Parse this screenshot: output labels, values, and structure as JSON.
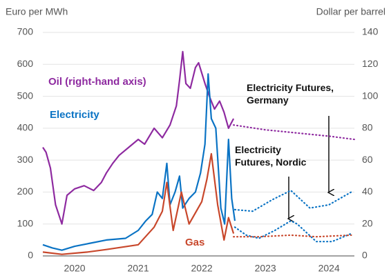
{
  "chart_data": {
    "type": "line",
    "ylabel": "Euro per MWh",
    "y2label": "Dollar per barrel",
    "xlim": [
      2020,
      2024.9
    ],
    "xticks": [
      {
        "value": 2020.5,
        "label": "2020"
      },
      {
        "value": 2021.5,
        "label": "2021"
      },
      {
        "value": 2022.5,
        "label": "2022"
      },
      {
        "value": 2023.5,
        "label": "2023"
      },
      {
        "value": 2024.5,
        "label": "2024"
      }
    ],
    "ylim": [
      0,
      700
    ],
    "yticks": [
      0,
      100,
      200,
      300,
      400,
      500,
      600,
      700
    ],
    "y2lim": [
      0,
      140
    ],
    "y2ticks": [
      0,
      20,
      40,
      60,
      80,
      100,
      120,
      140
    ],
    "grid": true,
    "series": [
      {
        "name": "Oil (right-hand axis)",
        "color": "#8e2aa0",
        "axis": "y2",
        "style": "solid",
        "x": [
          2020.0,
          2020.05,
          2020.12,
          2020.2,
          2020.3,
          2020.38,
          2020.5,
          2020.65,
          2020.8,
          2020.92,
          2021.0,
          2021.1,
          2021.2,
          2021.35,
          2021.5,
          2021.6,
          2021.75,
          2021.88,
          2022.0,
          2022.1,
          2022.15,
          2022.2,
          2022.25,
          2022.32,
          2022.4,
          2022.45,
          2022.55,
          2022.62,
          2022.7,
          2022.78,
          2022.85,
          2022.92,
          2023.0
        ],
        "values": [
          68,
          65,
          55,
          32,
          20,
          38,
          42,
          44,
          41,
          46,
          52,
          58,
          63,
          68,
          73,
          70,
          80,
          74,
          82,
          94,
          110,
          128,
          108,
          105,
          118,
          121,
          108,
          100,
          92,
          97,
          90,
          80,
          86
        ]
      },
      {
        "color": "#8e2aa0",
        "axis": "y2",
        "style": "dotted",
        "x": [
          2023.0,
          2023.5,
          2024.0,
          2024.5,
          2024.9
        ],
        "values": [
          82,
          79,
          77,
          75,
          73
        ]
      },
      {
        "name": "Electricity",
        "color": "#0a73c4",
        "style": "solid",
        "x": [
          2020.0,
          2020.15,
          2020.3,
          2020.5,
          2020.75,
          2021.0,
          2021.3,
          2021.5,
          2021.62,
          2021.72,
          2021.8,
          2021.88,
          2021.95,
          2022.0,
          2022.08,
          2022.15,
          2022.2,
          2022.3,
          2022.4,
          2022.48,
          2022.55,
          2022.6,
          2022.65,
          2022.72,
          2022.8,
          2022.86,
          2022.92,
          2022.97,
          2023.02
        ],
        "values": [
          35,
          25,
          18,
          30,
          40,
          50,
          55,
          80,
          110,
          130,
          200,
          180,
          290,
          160,
          200,
          250,
          150,
          180,
          200,
          260,
          350,
          570,
          430,
          400,
          150,
          100,
          365,
          180,
          110
        ]
      },
      {
        "name": "Electricity Futures, Germany",
        "color": "#0a73c4",
        "style": "dotted",
        "x": [
          2023.02,
          2023.3,
          2023.6,
          2023.9,
          2024.2,
          2024.5,
          2024.85
        ],
        "values": [
          145,
          140,
          175,
          205,
          150,
          160,
          200
        ]
      },
      {
        "name": "Electricity Futures, Nordic",
        "color": "#0a73c4",
        "style": "dotted",
        "x": [
          2023.02,
          2023.2,
          2023.4,
          2023.65,
          2023.9,
          2024.0,
          2024.3,
          2024.55,
          2024.85
        ],
        "values": [
          90,
          65,
          55,
          80,
          110,
          100,
          45,
          45,
          70
        ]
      },
      {
        "name": "Gas",
        "color": "#c8472b",
        "style": "solid",
        "x": [
          2020.0,
          2020.3,
          2020.7,
          2021.0,
          2021.5,
          2021.75,
          2021.88,
          2021.95,
          2022.05,
          2022.18,
          2022.3,
          2022.5,
          2022.58,
          2022.65,
          2022.75,
          2022.85,
          2022.92,
          2023.0
        ],
        "values": [
          12,
          5,
          12,
          20,
          35,
          90,
          140,
          230,
          80,
          200,
          100,
          170,
          240,
          320,
          160,
          50,
          120,
          70
        ]
      },
      {
        "color": "#c8472b",
        "style": "dotted",
        "x": [
          2023.0,
          2023.4,
          2023.9,
          2024.3,
          2024.85
        ],
        "values": [
          60,
          60,
          65,
          60,
          65
        ]
      }
    ]
  }
}
